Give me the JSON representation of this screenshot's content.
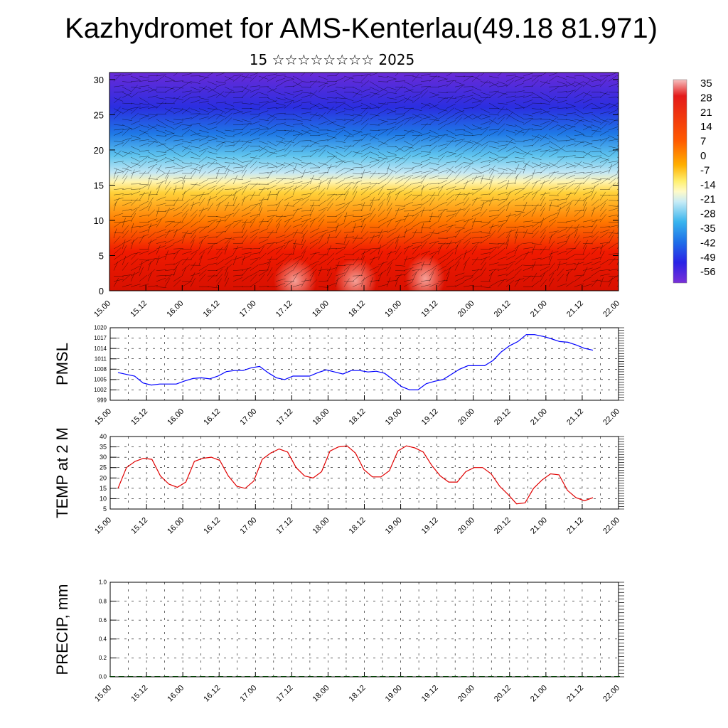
{
  "header": {
    "title": "Kazhydromet for AMS-Kenterlau(49.18 81.971)",
    "subtitle": "15 ☆☆☆☆☆☆☆☆ 2025"
  },
  "chart_data": [
    {
      "type": "heatmap",
      "name": "vertical-section",
      "x_ticks": [
        "15.00",
        "15.12",
        "16.00",
        "16.12",
        "17.00",
        "17.12",
        "18.00",
        "18.12",
        "19.00",
        "19.12",
        "20.00",
        "20.12",
        "21.00",
        "21.12",
        "22.00"
      ],
      "y_ticks": [
        0,
        5,
        10,
        15,
        20,
        25,
        30
      ],
      "ylim": [
        0,
        31
      ],
      "colorbar": [
        "35",
        "28",
        "21",
        "14",
        "7",
        "0",
        "-7",
        "-14",
        "-21",
        "-28",
        "-35",
        "-42",
        "-49",
        "-56"
      ],
      "colors": {
        "hot": "#f6b0b0",
        "red": "#e41a00",
        "orange": "#ff8a00",
        "yellow": "#ffe23a",
        "pale": "#fff8c0",
        "cyan": "#bfe6f4",
        "blue": "#1e7ce8",
        "deep": "#4a1ee0",
        "violet": "#6a2ad8"
      }
    },
    {
      "type": "line",
      "ylabel": "PMSL",
      "y_ticks": [
        999,
        1002,
        1005,
        1008,
        1011,
        1014,
        1017,
        1020
      ],
      "ylim": [
        999,
        1020
      ],
      "x_ticks": [
        "15.00",
        "15.12",
        "16.00",
        "16.12",
        "17.00",
        "17.12",
        "18.00",
        "18.12",
        "19.00",
        "19.12",
        "20.00",
        "20.12",
        "21.00",
        "21.12",
        "22.00"
      ],
      "color": "#0000ff",
      "values": [
        1007,
        1006.5,
        1006,
        1004,
        1003.4,
        1003.7,
        1003.7,
        1003.7,
        1004.6,
        1005.3,
        1005.5,
        1005.2,
        1006,
        1007.3,
        1007.6,
        1007.6,
        1008.4,
        1008.8,
        1007,
        1005.5,
        1005,
        1006,
        1006,
        1006,
        1007,
        1007.8,
        1007.2,
        1006.6,
        1007.6,
        1007.6,
        1007.2,
        1007.4,
        1006.8,
        1005,
        1003,
        1002,
        1002,
        1003.8,
        1004.5,
        1005,
        1006.5,
        1008,
        1009,
        1009,
        1009,
        1010.5,
        1013,
        1014.8,
        1016,
        1018,
        1018,
        1017.5,
        1016.8,
        1016,
        1015.8,
        1015,
        1014,
        1013.5
      ]
    },
    {
      "type": "line",
      "ylabel": "TEMP at 2 M",
      "y_ticks": [
        5,
        10,
        15,
        20,
        25,
        30,
        35,
        40
      ],
      "ylim": [
        5,
        40
      ],
      "x_ticks": [
        "15.00",
        "15.12",
        "16.00",
        "16.12",
        "17.00",
        "17.12",
        "18.00",
        "18.12",
        "19.00",
        "19.12",
        "20.00",
        "20.12",
        "21.00",
        "21.12",
        "22.00"
      ],
      "color": "#e00000",
      "values": [
        15,
        25,
        28,
        29.5,
        29,
        21,
        17,
        15.5,
        18,
        28,
        29.5,
        30,
        28.5,
        21,
        16,
        15,
        18.5,
        29,
        32,
        34,
        32.5,
        25,
        21,
        20,
        23,
        33,
        35,
        35.5,
        32,
        24,
        20.5,
        20.5,
        23.5,
        33,
        35.5,
        34.5,
        32.5,
        26,
        21,
        18,
        18,
        23,
        25,
        25,
        22,
        16,
        12,
        7.5,
        8,
        15,
        19,
        22,
        21.5,
        14,
        10.5,
        9,
        10.5
      ]
    },
    {
      "type": "bar",
      "ylabel": "PRECIP, mm",
      "y_ticks": [
        "0.0",
        "0.2",
        "0.4",
        "0.6",
        "0.8",
        "1.0"
      ],
      "ylim": [
        0,
        1
      ],
      "x_ticks": [
        "15.00",
        "15.12",
        "16.00",
        "16.12",
        "17.00",
        "17.12",
        "18.00",
        "18.12",
        "19.00",
        "19.12",
        "20.00",
        "20.12",
        "21.00",
        "21.12",
        "22.00"
      ],
      "color": "#004000",
      "values": [
        0,
        0,
        0,
        0,
        0,
        0,
        0,
        0,
        0,
        0,
        0,
        0,
        0,
        0,
        0,
        0,
        0,
        0,
        0,
        0,
        0,
        0,
        0,
        0,
        0,
        0,
        0,
        0,
        0,
        0,
        0,
        0,
        0,
        0,
        0,
        0,
        0,
        0,
        0,
        0,
        0,
        0,
        0,
        0,
        0,
        0,
        0,
        0,
        0,
        0,
        0,
        0,
        0,
        0,
        0,
        0,
        0
      ]
    }
  ]
}
